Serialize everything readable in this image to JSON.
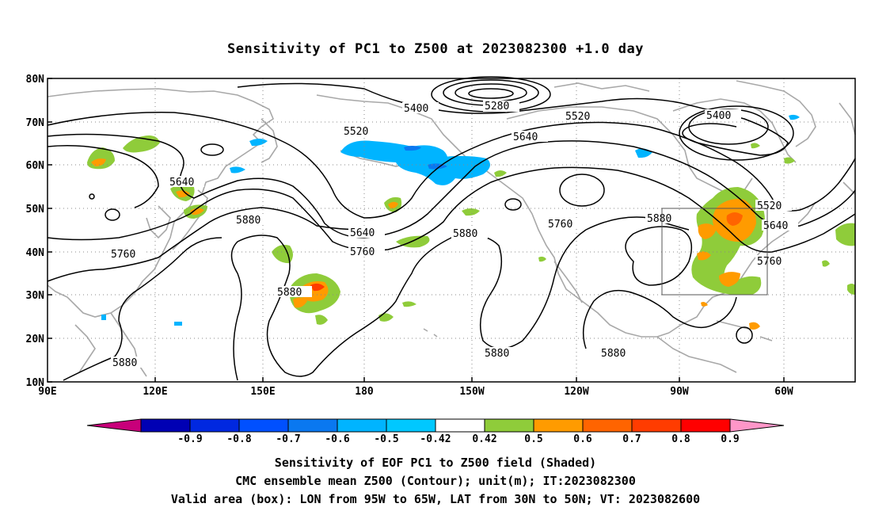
{
  "title": "Sensitivity of PC1 to Z500 at 2023082300 +1.0 day",
  "map": {
    "lat_labels": [
      "80N",
      "70N",
      "60N",
      "50N",
      "40N",
      "30N",
      "20N",
      "10N"
    ],
    "lon_labels": [
      "90E",
      "120E",
      "150E",
      "180",
      "150W",
      "120W",
      "90W",
      "60W"
    ],
    "contour_labels": [
      {
        "text": "5280"
      },
      {
        "text": "5400"
      },
      {
        "text": "5400"
      },
      {
        "text": "5520"
      },
      {
        "text": "5520"
      },
      {
        "text": "5520"
      },
      {
        "text": "5640"
      },
      {
        "text": "5640"
      },
      {
        "text": "5640"
      },
      {
        "text": "5640"
      },
      {
        "text": "5760"
      },
      {
        "text": "5760"
      },
      {
        "text": "5760"
      },
      {
        "text": "5760"
      },
      {
        "text": "5880"
      },
      {
        "text": "5880"
      },
      {
        "text": "5880"
      },
      {
        "text": "5880"
      },
      {
        "text": "5880"
      },
      {
        "text": "5880"
      },
      {
        "text": "5880"
      }
    ],
    "valid_box": {
      "lon_from": "95W",
      "lon_to": "65W",
      "lat_from": "30N",
      "lat_to": "50N"
    }
  },
  "colorbar": {
    "labels": [
      "-0.9",
      "-0.8",
      "-0.7",
      "-0.6",
      "-0.5",
      "-0.42",
      "0.42",
      "0.5",
      "0.6",
      "0.7",
      "0.8",
      "0.9"
    ],
    "colors": [
      "#c8007a",
      "#0000b4",
      "#0028e0",
      "#0050ff",
      "#0a78f0",
      "#00b4ff",
      "#00c8ff",
      "#ffffff",
      "#8fcc3a",
      "#ff9b00",
      "#ff6400",
      "#ff3c00",
      "#ff0000",
      "#ff96c8"
    ]
  },
  "footer": {
    "line1": "Sensitivity of EOF PC1 to Z500 field (Shaded)",
    "line2": "CMC ensemble mean Z500 (Contour); unit(m); IT:2023082300",
    "line3": "Valid area (box): LON from 95W to 65W, LAT from 30N to 50N; VT: 2023082600"
  }
}
